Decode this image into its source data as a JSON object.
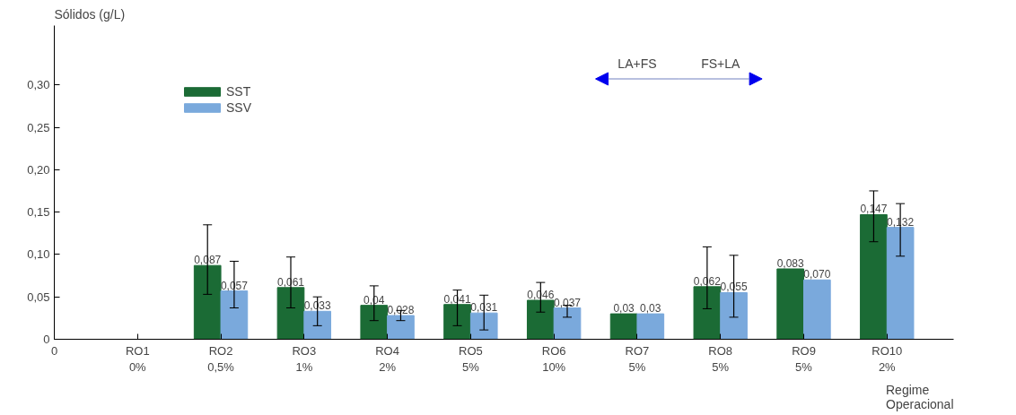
{
  "chart_data": {
    "type": "bar",
    "ylabel": "Sólidos (g/L)",
    "xlabel": "Regime\nOperacional",
    "categories": [
      "RO1\n0%",
      "RO2\n0,5%",
      "RO3\n1%",
      "RO4\n2%",
      "RO5\n5%",
      "RO6\n10%",
      "RO7\n5%",
      "RO8\n5%",
      "RO9\n5%",
      "RO10\n2%"
    ],
    "series": [
      {
        "name": "SST",
        "color": "#1b6b35",
        "values": [
          null,
          0.087,
          0.061,
          0.04,
          0.041,
          0.046,
          0.03,
          0.062,
          0.083,
          0.147
        ],
        "value_labels": [
          null,
          "0,087",
          "0,061",
          "0,04",
          "0,041",
          "0,046",
          "0,03",
          "0,062",
          "0,083",
          "0,147"
        ],
        "errors": [
          null,
          [
            0.053,
            0.135
          ],
          [
            0.037,
            0.097
          ],
          [
            0.022,
            0.063
          ],
          [
            0.016,
            0.058
          ],
          [
            0.032,
            0.067
          ],
          null,
          [
            0.036,
            0.109
          ],
          null,
          [
            0.115,
            0.175
          ]
        ]
      },
      {
        "name": "SSV",
        "color": "#7aa9dc",
        "values": [
          null,
          0.057,
          0.033,
          0.028,
          0.031,
          0.037,
          0.03,
          0.055,
          0.07,
          0.132
        ],
        "value_labels": [
          null,
          "0,057",
          "0,033",
          "0,028",
          "0,031",
          "0,037",
          "0,03",
          "0,055",
          "0,070",
          "0,132"
        ],
        "errors": [
          null,
          [
            0.037,
            0.092
          ],
          [
            0.016,
            0.05
          ],
          [
            0.022,
            0.034
          ],
          [
            0.011,
            0.052
          ],
          [
            0.026,
            0.04
          ],
          null,
          [
            0.026,
            0.099
          ],
          null,
          [
            0.098,
            0.16
          ]
        ]
      }
    ],
    "ylim": [
      0,
      0.37
    ],
    "yticks": [
      0,
      {
        "value": 0.05,
        "label": "0,05"
      },
      {
        "value": 0.1,
        "label": "0,10"
      },
      {
        "value": 0.15,
        "label": "0,15"
      },
      {
        "value": 0.2,
        "label": "0,20"
      },
      {
        "value": 0.25,
        "label": "0,25"
      },
      {
        "value": 0.3,
        "label": "0,30"
      }
    ],
    "annotations": [
      "0",
      "LA+FS",
      "FS+LA"
    ],
    "legend": "top left",
    "grid": false
  }
}
